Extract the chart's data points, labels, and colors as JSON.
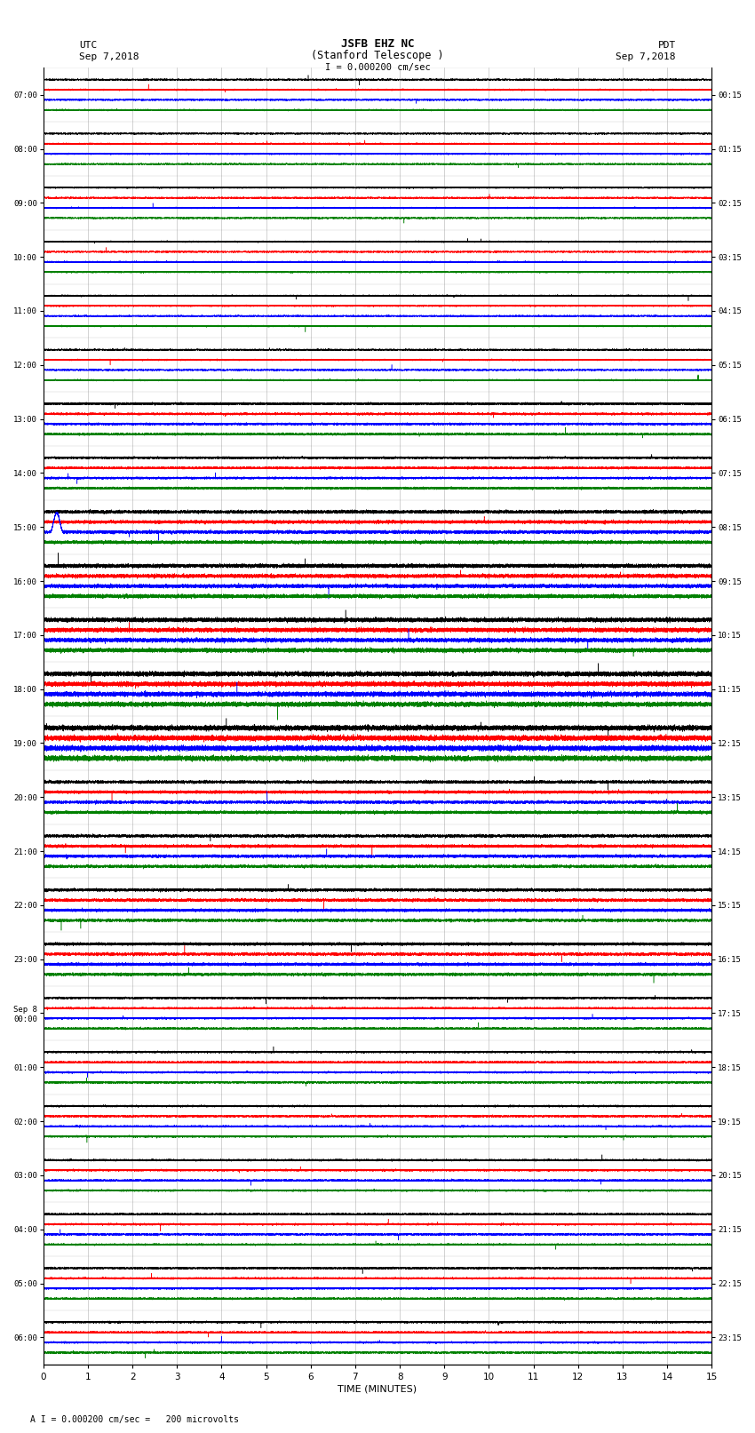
{
  "title_line1": "JSFB EHZ NC",
  "title_line2": "(Stanford Telescope )",
  "scale_label": "I = 0.000200 cm/sec",
  "utc_label": "UTC",
  "utc_date": "Sep 7,2018",
  "pdt_label": "PDT",
  "pdt_date": "Sep 7,2018",
  "bottom_label": "TIME (MINUTES)",
  "bottom_note": "A I = 0.000200 cm/sec =   200 microvolts",
  "left_times": [
    "07:00",
    "08:00",
    "09:00",
    "10:00",
    "11:00",
    "12:00",
    "13:00",
    "14:00",
    "15:00",
    "16:00",
    "17:00",
    "18:00",
    "19:00",
    "20:00",
    "21:00",
    "22:00",
    "23:00",
    "Sep 8\n00:00",
    "01:00",
    "02:00",
    "03:00",
    "04:00",
    "05:00",
    "06:00"
  ],
  "right_times": [
    "00:15",
    "01:15",
    "02:15",
    "03:15",
    "04:15",
    "05:15",
    "06:15",
    "07:15",
    "08:15",
    "09:15",
    "10:15",
    "11:15",
    "12:15",
    "13:15",
    "14:15",
    "15:15",
    "16:15",
    "17:15",
    "18:15",
    "19:15",
    "20:15",
    "21:15",
    "22:15",
    "23:15"
  ],
  "colors": [
    "black",
    "red",
    "blue",
    "green"
  ],
  "n_rows": 24,
  "n_traces_per_row": 4,
  "duration_minutes": 15,
  "sample_rate": 50,
  "fig_width": 8.5,
  "fig_height": 16.13,
  "bg_color": "white",
  "x_ticks": [
    0,
    1,
    2,
    3,
    4,
    5,
    6,
    7,
    8,
    9,
    10,
    11,
    12,
    13,
    14,
    15
  ]
}
